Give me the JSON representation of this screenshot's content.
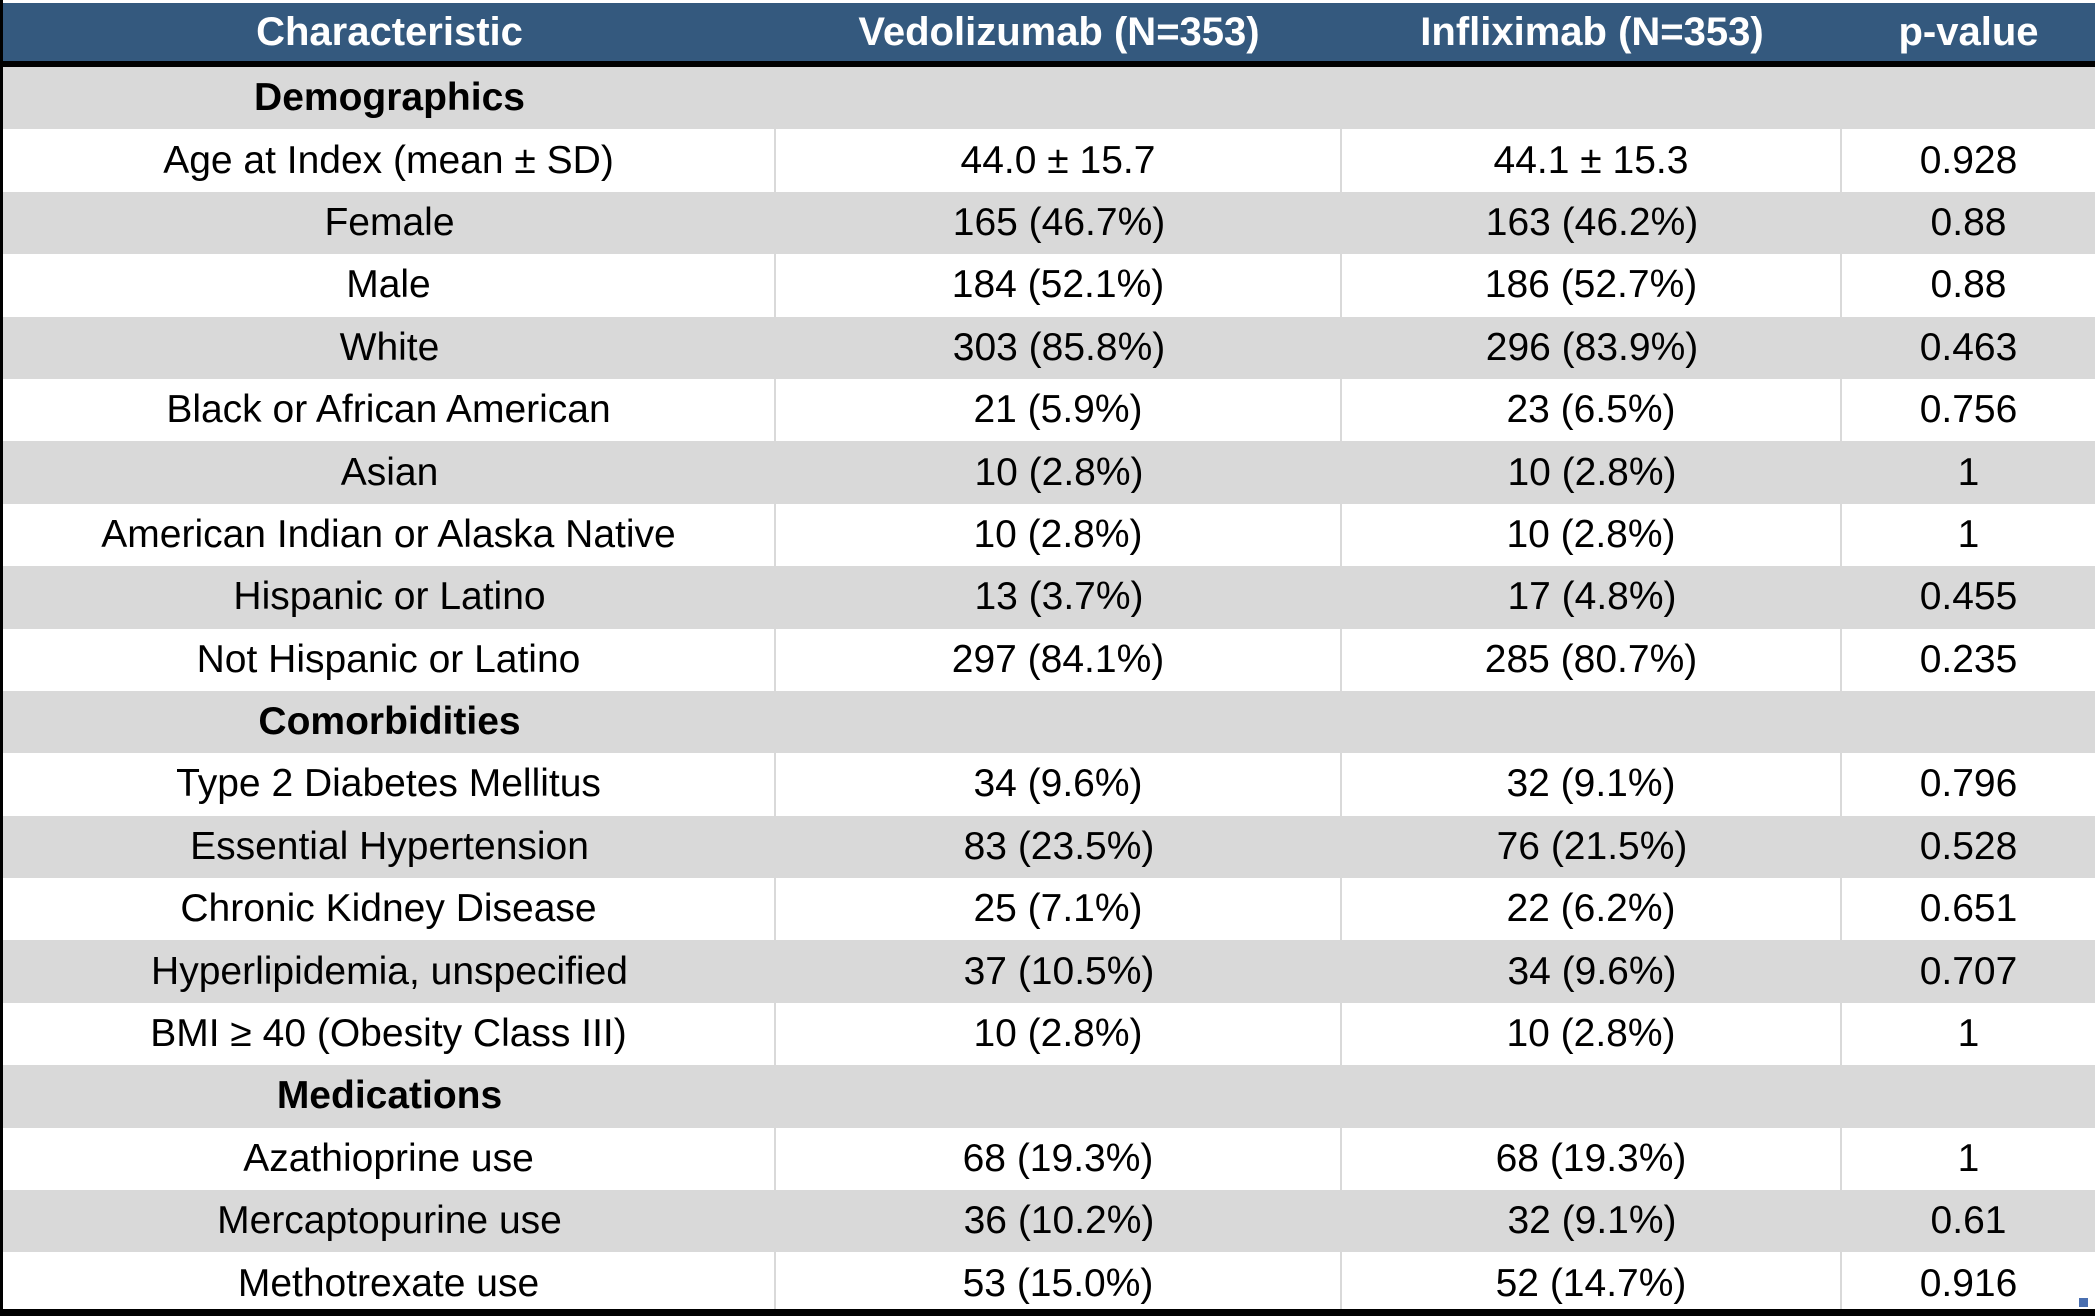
{
  "table": {
    "headers": [
      "Characteristic",
      "Vedolizumab (N=353)",
      "Infliximab (N=353)",
      "p-value"
    ],
    "rows": [
      {
        "type": "section",
        "cells": [
          "Demographics",
          "",
          "",
          ""
        ]
      },
      {
        "type": "data",
        "cells": [
          "Age at Index (mean ± SD)",
          "44.0 ± 15.7",
          "44.1 ± 15.3",
          "0.928"
        ]
      },
      {
        "type": "data",
        "cells": [
          "Female",
          "165 (46.7%)",
          "163 (46.2%)",
          "0.88"
        ]
      },
      {
        "type": "data",
        "cells": [
          "Male",
          "184 (52.1%)",
          "186 (52.7%)",
          "0.88"
        ]
      },
      {
        "type": "data",
        "cells": [
          "White",
          "303 (85.8%)",
          "296 (83.9%)",
          "0.463"
        ]
      },
      {
        "type": "data",
        "cells": [
          "Black or African American",
          "21 (5.9%)",
          "23 (6.5%)",
          "0.756"
        ]
      },
      {
        "type": "data",
        "cells": [
          "Asian",
          "10 (2.8%)",
          "10 (2.8%)",
          "1"
        ]
      },
      {
        "type": "data",
        "cells": [
          "American Indian or Alaska Native",
          "10 (2.8%)",
          "10 (2.8%)",
          "1"
        ]
      },
      {
        "type": "data",
        "cells": [
          "Hispanic or Latino",
          "13 (3.7%)",
          "17 (4.8%)",
          "0.455"
        ]
      },
      {
        "type": "data",
        "cells": [
          "Not Hispanic or Latino",
          "297 (84.1%)",
          "285 (80.7%)",
          "0.235"
        ]
      },
      {
        "type": "section",
        "cells": [
          "Comorbidities",
          "",
          "",
          ""
        ]
      },
      {
        "type": "data",
        "cells": [
          "Type 2 Diabetes Mellitus",
          "34 (9.6%)",
          "32 (9.1%)",
          "0.796"
        ]
      },
      {
        "type": "data",
        "cells": [
          "Essential Hypertension",
          "83 (23.5%)",
          "76 (21.5%)",
          "0.528"
        ]
      },
      {
        "type": "data",
        "cells": [
          "Chronic Kidney Disease",
          "25 (7.1%)",
          "22 (6.2%)",
          "0.651"
        ]
      },
      {
        "type": "data",
        "cells": [
          "Hyperlipidemia, unspecified",
          "37 (10.5%)",
          "34 (9.6%)",
          "0.707"
        ]
      },
      {
        "type": "data",
        "cells": [
          "BMI ≥ 40 (Obesity Class III)",
          "10 (2.8%)",
          "10 (2.8%)",
          "1"
        ]
      },
      {
        "type": "section",
        "cells": [
          "Medications",
          "",
          "",
          ""
        ]
      },
      {
        "type": "data",
        "cells": [
          "Azathioprine use",
          "68 (19.3%)",
          "68 (19.3%)",
          "1"
        ]
      },
      {
        "type": "data",
        "cells": [
          "Mercaptopurine use",
          "36 (10.2%)",
          "32 (9.1%)",
          "0.61"
        ]
      },
      {
        "type": "data",
        "cells": [
          "Methotrexate use",
          "53 (15.0%)",
          "52 (14.7%)",
          "0.916"
        ]
      }
    ]
  },
  "colors": {
    "header_bg": "#34597e",
    "header_text": "#ffffff",
    "shade_bg": "#d9d9d9",
    "plain_bg": "#ffffff"
  }
}
